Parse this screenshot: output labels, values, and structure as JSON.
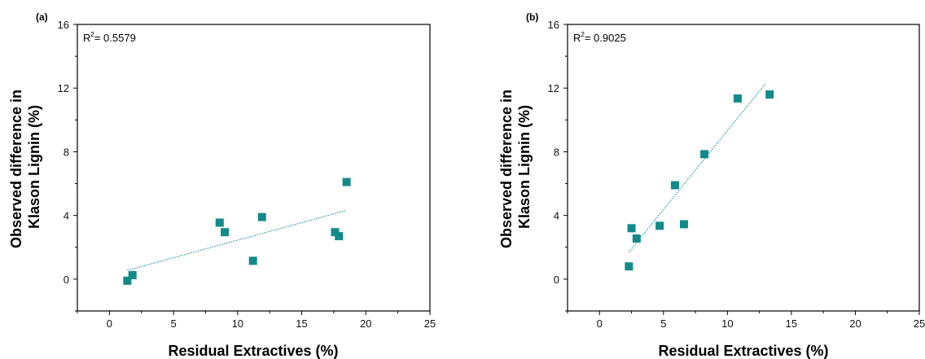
{
  "chart_data": [
    {
      "type": "scatter",
      "panel_label": "(a)",
      "annotation": {
        "text": "R",
        "sup": "2",
        "rest": "= 0.5579"
      },
      "xlabel": "Residual Extractives (%)",
      "ylabel_lines": [
        "Observed difference in",
        "Klason Lignin (%)"
      ],
      "xlim": [
        -2.5,
        25
      ],
      "ylim": [
        -2,
        16
      ],
      "xticks": [
        0,
        5,
        10,
        15,
        20,
        25
      ],
      "yticks": [
        0,
        4,
        8,
        12,
        16
      ],
      "points": [
        {
          "x": 1.4,
          "y": -0.1
        },
        {
          "x": 1.8,
          "y": 0.25
        },
        {
          "x": 8.6,
          "y": 3.55
        },
        {
          "x": 9.0,
          "y": 2.95
        },
        {
          "x": 11.2,
          "y": 1.15
        },
        {
          "x": 11.9,
          "y": 3.9
        },
        {
          "x": 17.6,
          "y": 2.95
        },
        {
          "x": 17.9,
          "y": 2.7
        },
        {
          "x": 18.5,
          "y": 6.1
        }
      ],
      "fit": {
        "x": [
          1.4,
          18.4
        ],
        "y": [
          0.55,
          4.3
        ]
      },
      "marker_color": "#138a8a",
      "fit_color": "#1b8fa0"
    },
    {
      "type": "scatter",
      "panel_label": "(b)",
      "annotation": {
        "text": "R",
        "sup": "2",
        "rest": "= 0.9025"
      },
      "xlabel": "Residual Extractives (%)",
      "ylabel_lines": [
        "Observed difference in",
        "Klason Lignin (%)"
      ],
      "xlim": [
        -2.5,
        25
      ],
      "ylim": [
        -2,
        16
      ],
      "xticks": [
        0,
        5,
        10,
        15,
        20,
        25
      ],
      "yticks": [
        0,
        4,
        8,
        12,
        16
      ],
      "points": [
        {
          "x": 2.3,
          "y": 0.8
        },
        {
          "x": 2.5,
          "y": 3.2
        },
        {
          "x": 2.9,
          "y": 2.55
        },
        {
          "x": 4.7,
          "y": 3.35
        },
        {
          "x": 5.9,
          "y": 5.9
        },
        {
          "x": 6.6,
          "y": 3.45
        },
        {
          "x": 8.2,
          "y": 7.85
        },
        {
          "x": 10.8,
          "y": 11.35
        },
        {
          "x": 13.3,
          "y": 11.6
        }
      ],
      "fit": {
        "x": [
          2.3,
          13.0
        ],
        "y": [
          1.7,
          12.3
        ]
      },
      "marker_color": "#138a8a",
      "fit_color": "#1b8fa0"
    }
  ]
}
